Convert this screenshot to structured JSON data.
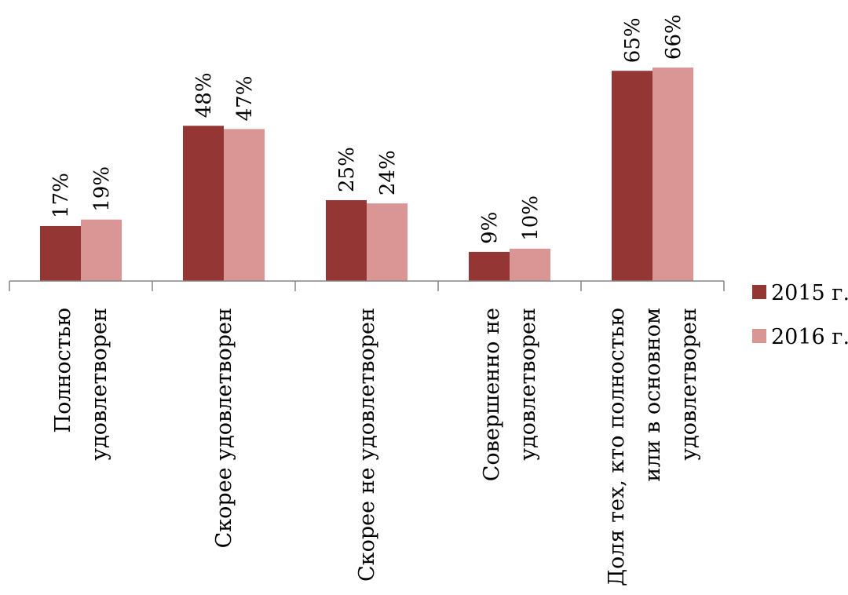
{
  "chart_data": {
    "type": "bar",
    "title": "",
    "xlabel": "",
    "ylabel": "",
    "ylim": [
      0,
      70
    ],
    "grid": false,
    "legend_position": "right",
    "categories": [
      [
        "Полностью",
        "удовлетворен"
      ],
      [
        "Скорее удовлетворен"
      ],
      [
        "Скорее не удовлетворен"
      ],
      [
        "Совершенно не",
        "удовлетворен"
      ],
      [
        "Доля тех, кто полностью",
        "или в основном",
        "удовлетворен"
      ]
    ],
    "series": [
      {
        "name": "2015 г.",
        "color": "#943634",
        "values": [
          17,
          48,
          25,
          9,
          65
        ],
        "labels": [
          "17%",
          "48%",
          "25%",
          "9%",
          "65%"
        ]
      },
      {
        "name": "2016 г.",
        "color": "#d99694",
        "values": [
          19,
          47,
          24,
          10,
          66
        ],
        "labels": [
          "19%",
          "47%",
          "24%",
          "10%",
          "66%"
        ]
      }
    ]
  }
}
